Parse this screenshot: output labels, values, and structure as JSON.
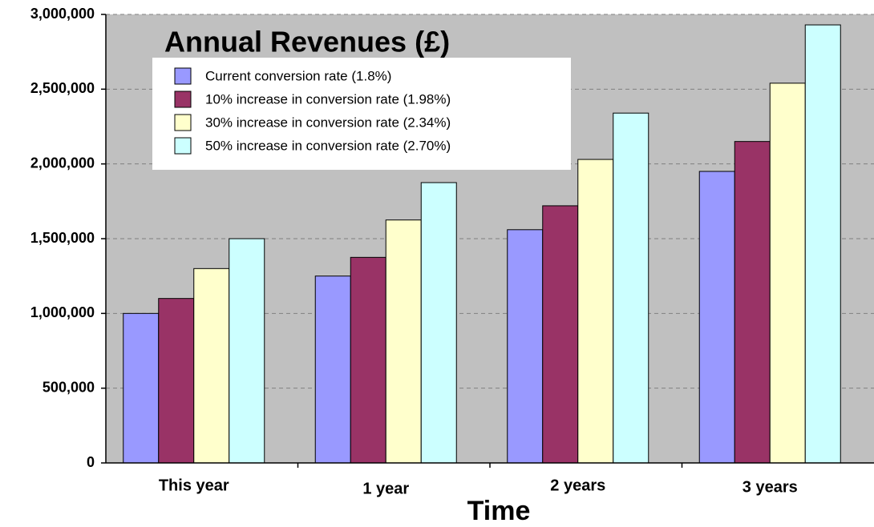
{
  "chart_data": {
    "type": "bar",
    "title": "Annual Revenues (£)",
    "x_label": "Time",
    "categories": [
      "This year",
      "1 year",
      "2 years",
      "3 years"
    ],
    "series": [
      {
        "name": "Current conversion rate (1.8%)",
        "color": "#9999ff",
        "values": [
          1000000,
          1250000,
          1560000,
          1950000
        ]
      },
      {
        "name": "10% increase in conversion rate (1.98%)",
        "color": "#993366",
        "values": [
          1100000,
          1375000,
          1720000,
          2150000
        ]
      },
      {
        "name": "30% increase in conversion rate (2.34%)",
        "color": "#ffffcc",
        "values": [
          1300000,
          1625000,
          2030000,
          2540000
        ]
      },
      {
        "name": "50% increase in conversion rate (2.70%)",
        "color": "#ccffff",
        "values": [
          1500000,
          1875000,
          2340000,
          2930000
        ]
      }
    ],
    "ylim": [
      0,
      3000000
    ],
    "yticks": [
      0,
      {
        "value": 500000,
        "label": "500,000"
      },
      {
        "value": 1000000,
        "label": "1,000,000"
      },
      {
        "value": 1500000,
        "label": "1,500,000"
      },
      {
        "value": 2000000,
        "label": "2,000,000"
      },
      {
        "value": 2500000,
        "label": "2,500,000"
      },
      {
        "value": 3000000,
        "label": "3,000,000"
      }
    ],
    "grid": true,
    "legend": "upper left"
  }
}
